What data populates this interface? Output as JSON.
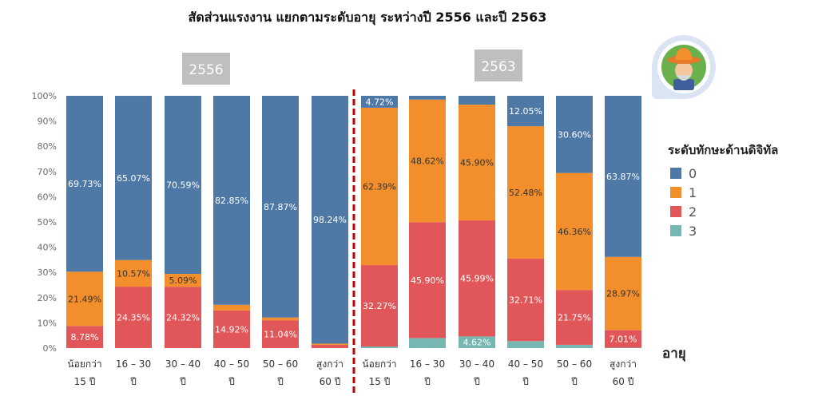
{
  "chart_data": {
    "type": "bar",
    "title": "สัดส่วนแรงงาน แยกตามระดับอายุ ระหว่างปี 2556 และปี 2563",
    "panels": [
      "2556",
      "2563"
    ],
    "categories": [
      [
        "น้อยกว่า",
        "15 ปี"
      ],
      [
        "16 – 30",
        "ปี"
      ],
      [
        "30 – 40",
        "ปี"
      ],
      [
        "40 – 50",
        "ปี"
      ],
      [
        "50 – 60",
        "ปี"
      ],
      [
        "สูงกว่า",
        "60 ปี"
      ],
      [
        "น้อยกว่า",
        "15 ปี"
      ],
      [
        "16 – 30",
        "ปี"
      ],
      [
        "30 – 40",
        "ปี"
      ],
      [
        "40 – 50",
        "ปี"
      ],
      [
        "50 – 60",
        "ปี"
      ],
      [
        "สูงกว่า",
        "60 ปี"
      ]
    ],
    "series": [
      {
        "name": "0",
        "color": "#4e79a7",
        "values": [
          69.73,
          65.07,
          70.59,
          82.85,
          87.87,
          98.24,
          4.72,
          1.5,
          3.5,
          12.05,
          30.6,
          63.87
        ]
      },
      {
        "name": "1",
        "color": "#f28e2b",
        "values": [
          21.49,
          10.57,
          5.09,
          2.23,
          1.09,
          0.5,
          62.39,
          48.62,
          45.9,
          52.48,
          46.36,
          28.97
        ]
      },
      {
        "name": "2",
        "color": "#e15759",
        "values": [
          8.78,
          24.35,
          24.32,
          14.92,
          11.04,
          1.26,
          32.27,
          45.9,
          45.99,
          32.71,
          21.75,
          7.01
        ]
      },
      {
        "name": "3",
        "color": "#76b7b2",
        "values": [
          0,
          0,
          0,
          0,
          0,
          0,
          0.62,
          3.98,
          4.62,
          2.76,
          1.3,
          0.15
        ]
      }
    ],
    "data_labels": [
      {
        "bar": 0,
        "series": 0,
        "text": "69.73%"
      },
      {
        "bar": 0,
        "series": 1,
        "text": "21.49%"
      },
      {
        "bar": 0,
        "series": 2,
        "text": "8.78%"
      },
      {
        "bar": 1,
        "series": 0,
        "text": "65.07%"
      },
      {
        "bar": 1,
        "series": 1,
        "text": "10.57%"
      },
      {
        "bar": 1,
        "series": 2,
        "text": "24.35%"
      },
      {
        "bar": 2,
        "series": 0,
        "text": "70.59%"
      },
      {
        "bar": 2,
        "series": 1,
        "text": "5.09%"
      },
      {
        "bar": 2,
        "series": 2,
        "text": "24.32%"
      },
      {
        "bar": 3,
        "series": 0,
        "text": "82.85%"
      },
      {
        "bar": 3,
        "series": 2,
        "text": "14.92%"
      },
      {
        "bar": 4,
        "series": 0,
        "text": "87.87%"
      },
      {
        "bar": 4,
        "series": 2,
        "text": "11.04%"
      },
      {
        "bar": 5,
        "series": 0,
        "text": "98.24%"
      },
      {
        "bar": 6,
        "series": 0,
        "text": "4.72%"
      },
      {
        "bar": 6,
        "series": 1,
        "text": "62.39%"
      },
      {
        "bar": 6,
        "series": 2,
        "text": "32.27%"
      },
      {
        "bar": 7,
        "series": 1,
        "text": "48.62%"
      },
      {
        "bar": 7,
        "series": 2,
        "text": "45.90%"
      },
      {
        "bar": 8,
        "series": 1,
        "text": "45.90%"
      },
      {
        "bar": 8,
        "series": 2,
        "text": "45.99%"
      },
      {
        "bar": 8,
        "series": 3,
        "text": "4.62%"
      },
      {
        "bar": 9,
        "series": 0,
        "text": "12.05%"
      },
      {
        "bar": 9,
        "series": 1,
        "text": "52.48%"
      },
      {
        "bar": 9,
        "series": 2,
        "text": "32.71%"
      },
      {
        "bar": 10,
        "series": 0,
        "text": "30.60%"
      },
      {
        "bar": 10,
        "series": 1,
        "text": "46.36%"
      },
      {
        "bar": 10,
        "series": 2,
        "text": "21.75%"
      },
      {
        "bar": 11,
        "series": 0,
        "text": "63.87%"
      },
      {
        "bar": 11,
        "series": 1,
        "text": "28.97%"
      },
      {
        "bar": 11,
        "series": 2,
        "text": "7.01%"
      }
    ],
    "yticks": [
      "0%",
      "10%",
      "20%",
      "30%",
      "40%",
      "50%",
      "60%",
      "70%",
      "80%",
      "90%",
      "100%"
    ],
    "ylim": [
      0,
      100
    ],
    "xlabel": "อายุ",
    "ylabel": "",
    "legend": {
      "title": "ระดับทักษะด้านดิจิทัล",
      "position": "right"
    },
    "grid": false,
    "divider_color": "#c00000",
    "year_badge_color": "#bfbfbf",
    "avatar_bg_color": "#dbe4f3"
  }
}
